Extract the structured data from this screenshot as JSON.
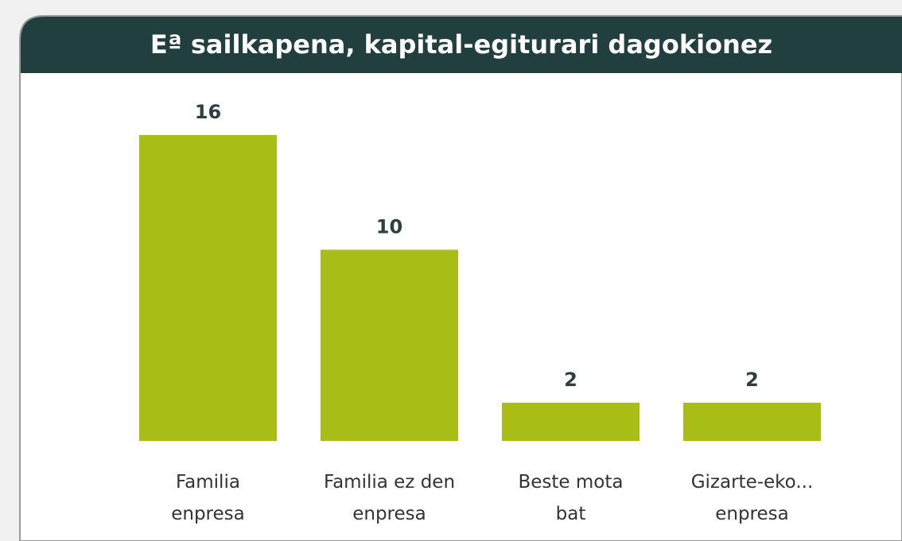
{
  "chart_data": {
    "type": "bar",
    "title": "Eª sailkapena, kapital-egiturari dagokionez",
    "categories": [
      "Familia enpresa",
      "Familia ez den enpresa",
      "Beste mota bat",
      "Gizarte-eko... enpresa"
    ],
    "values": [
      16,
      10,
      2,
      2
    ],
    "color": "#a8bd16"
  }
}
